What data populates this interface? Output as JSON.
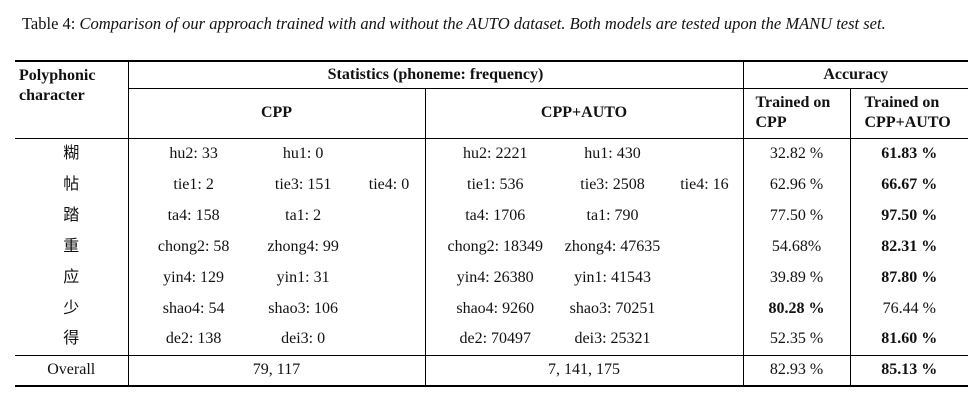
{
  "caption": {
    "label": "Table 4:",
    "text": "Comparison of our approach trained with and without the AUTO dataset. Both models are tested upon the MANU test set."
  },
  "table": {
    "header": {
      "char": "Polyphonic character",
      "stats": "Statistics (phoneme: frequency)",
      "accuracy": "Accuracy",
      "cpp": "CPP",
      "cpp_auto": "CPP+AUTO",
      "trained_cpp": "Trained on CPP",
      "trained_auto": "Trained on CPP+AUTO"
    },
    "rows": [
      {
        "char": "糊",
        "cpp": [
          "hu2: 33",
          "hu1: 0"
        ],
        "cpp_auto": [
          "hu2: 2221",
          "hu1: 430"
        ],
        "acc_cpp": "32.82 %",
        "acc_auto": "61.83 %",
        "bold": "acc_auto"
      },
      {
        "char": "帖",
        "cpp": [
          "tie1: 2",
          "tie3: 151",
          "tie4: 0"
        ],
        "cpp_auto": [
          "tie1: 536",
          "tie3: 2508",
          "tie4: 16"
        ],
        "acc_cpp": "62.96 %",
        "acc_auto": "66.67 %",
        "bold": "acc_auto"
      },
      {
        "char": "踏",
        "cpp": [
          "ta4: 158",
          "ta1: 2"
        ],
        "cpp_auto": [
          "ta4: 1706",
          "ta1: 790"
        ],
        "acc_cpp": "77.50 %",
        "acc_auto": "97.50 %",
        "bold": "acc_auto"
      },
      {
        "char": "重",
        "cpp": [
          "chong2: 58",
          "zhong4: 99"
        ],
        "cpp_auto": [
          "chong2: 18349",
          "zhong4: 47635"
        ],
        "acc_cpp": "54.68%",
        "acc_auto": "82.31 %",
        "bold": "acc_auto"
      },
      {
        "char": "应",
        "cpp": [
          "yin4: 129",
          "yin1: 31"
        ],
        "cpp_auto": [
          "yin4: 26380",
          "yin1: 41543"
        ],
        "acc_cpp": "39.89 %",
        "acc_auto": "87.80 %",
        "bold": "acc_auto"
      },
      {
        "char": "少",
        "cpp": [
          "shao4: 54",
          "shao3: 106"
        ],
        "cpp_auto": [
          "shao4: 9260",
          "shao3: 70251"
        ],
        "acc_cpp": "80.28 %",
        "acc_auto": "76.44 %",
        "bold": "acc_cpp"
      },
      {
        "char": "得",
        "cpp": [
          "de2: 138",
          "dei3: 0"
        ],
        "cpp_auto": [
          "de2: 70497",
          "dei3: 25321"
        ],
        "acc_cpp": "52.35 %",
        "acc_auto": "81.60 %",
        "bold": "acc_auto"
      },
      {
        "char": "Overall",
        "cpp": [
          "79, 117"
        ],
        "cpp_auto": [
          "7, 141, 175"
        ],
        "acc_cpp": "82.93 %",
        "acc_auto": "85.13 %",
        "bold": "acc_auto"
      }
    ]
  }
}
